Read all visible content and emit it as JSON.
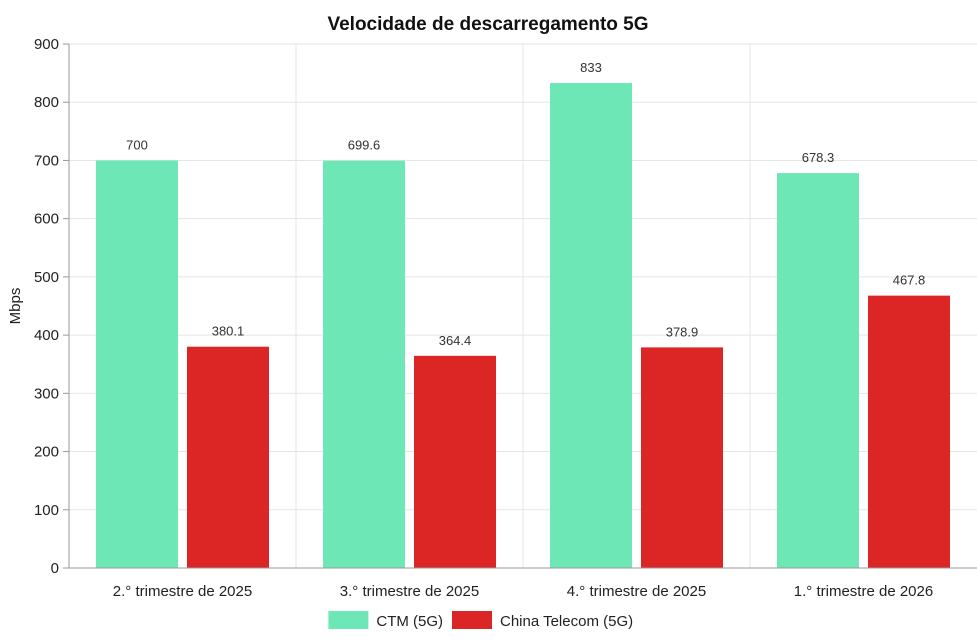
{
  "chart_data": {
    "type": "bar",
    "title": "Velocidade de descarregamento 5G",
    "ylabel": "Mbps",
    "xlabel": "",
    "ylim": [
      0,
      900
    ],
    "yticks": [
      0,
      100,
      200,
      300,
      400,
      500,
      600,
      700,
      800,
      900
    ],
    "grid": true,
    "legend_position": "bottom",
    "categories": [
      "2.°  trimestre de 2025",
      "3.°  trimestre de 2025",
      "4.°  trimestre de 2025",
      "1.°  trimestre de 2026"
    ],
    "series": [
      {
        "name": "CTM (5G)",
        "color": "#6ee7b7",
        "values": [
          700,
          699.6,
          833,
          678.3
        ]
      },
      {
        "name": "China Telecom (5G)",
        "color": "#dc2626",
        "values": [
          380.1,
          364.4,
          378.9,
          467.8
        ]
      }
    ]
  }
}
